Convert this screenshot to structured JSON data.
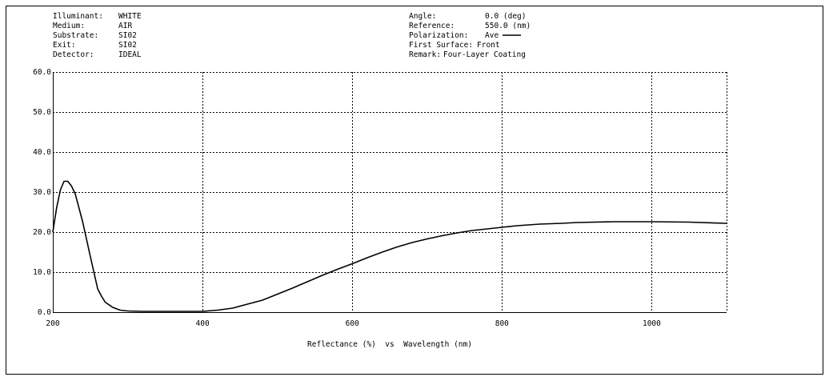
{
  "header": {
    "left": [
      {
        "label": "Illuminant:",
        "value": "WHITE"
      },
      {
        "label": "Medium:",
        "value": "AIR"
      },
      {
        "label": "Substrate:",
        "value": "SI02"
      },
      {
        "label": "Exit:",
        "value": "SI02"
      },
      {
        "label": "Detector:",
        "value": "IDEAL"
      }
    ],
    "right": [
      {
        "label": "Angle:",
        "value": "0.0 (deg)"
      },
      {
        "label": "Reference:",
        "value": "550.0 (nm)"
      },
      {
        "label": "Polarization:",
        "value": "Ave"
      },
      {
        "label": "First Surface:",
        "value": "Front"
      },
      {
        "label": "Remark:",
        "value": "Four-Layer Coating"
      }
    ]
  },
  "colors": {
    "line": "#000000",
    "grid": "#000000",
    "border": "#000000"
  },
  "chart_data": {
    "type": "line",
    "xlabel": "Reflectance (%)  vs  Wavelength (nm)",
    "xlim": [
      200,
      1100
    ],
    "ylim": [
      0,
      60
    ],
    "x_ticks": [
      200,
      400,
      600,
      800,
      1000
    ],
    "x_tick_labels": [
      "200",
      "400",
      "600",
      "800",
      "1000"
    ],
    "y_ticks": [
      0,
      10,
      20,
      30,
      40,
      50,
      60
    ],
    "y_tick_labels": [
      "0.0",
      "10.0",
      "20.0",
      "30.0",
      "40.0",
      "50.0",
      "60.0"
    ],
    "grid": true,
    "legend": "top-right",
    "series": [
      {
        "name": "Ave",
        "x": [
          200,
          205,
          210,
          215,
          220,
          225,
          230,
          240,
          250,
          260,
          265,
          270,
          280,
          290,
          300,
          320,
          350,
          380,
          400,
          420,
          440,
          460,
          480,
          500,
          520,
          540,
          560,
          580,
          600,
          620,
          640,
          660,
          680,
          700,
          720,
          740,
          760,
          780,
          800,
          820,
          850,
          880,
          900,
          950,
          1000,
          1050,
          1100
        ],
        "y": [
          20,
          26,
          30.5,
          32.7,
          32.7,
          31.5,
          29.5,
          22.5,
          14,
          5.8,
          4,
          2.5,
          1.2,
          0.5,
          0.3,
          0.2,
          0.2,
          0.2,
          0.2,
          0.5,
          1,
          2,
          3,
          4.5,
          6,
          7.6,
          9.2,
          10.7,
          12.1,
          13.6,
          15,
          16.3,
          17.4,
          18.3,
          19.1,
          19.8,
          20.4,
          20.8,
          21.2,
          21.6,
          22,
          22.2,
          22.4,
          22.6,
          22.6,
          22.5,
          22.2
        ]
      }
    ]
  }
}
